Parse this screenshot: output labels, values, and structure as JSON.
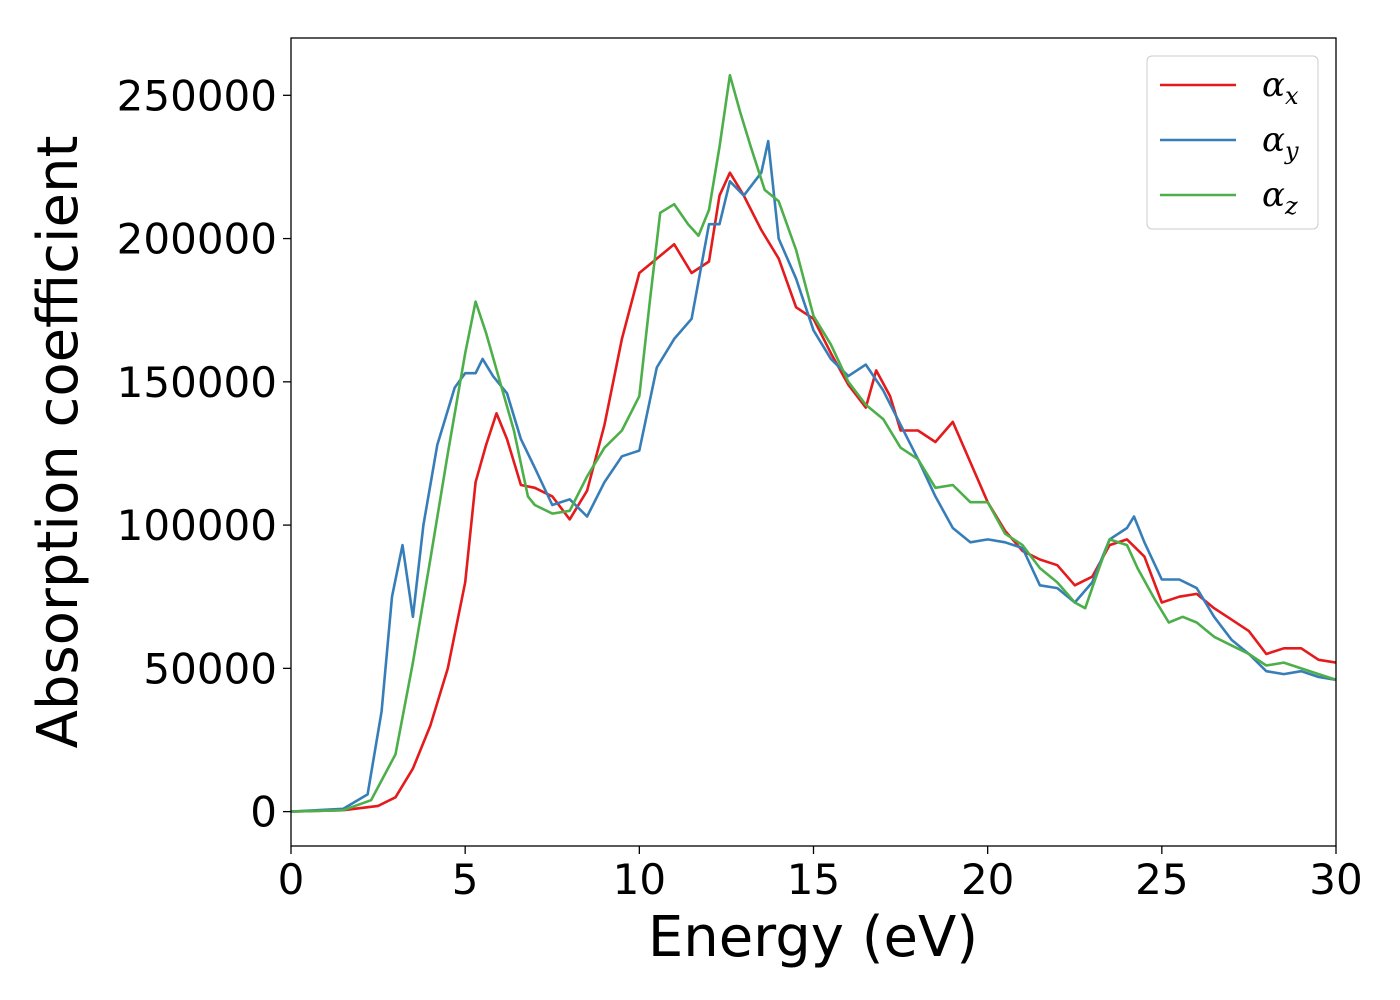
{
  "chart_data": {
    "type": "line",
    "xlabel": "Energy (eV)",
    "ylabel": "Absorption coefficient",
    "xlim": [
      0,
      30
    ],
    "ylim": [
      -12000,
      270000
    ],
    "xticks": [
      0,
      5,
      10,
      15,
      20,
      25,
      30
    ],
    "xtick_labels": [
      "0",
      "5",
      "10",
      "15",
      "20",
      "25",
      "30"
    ],
    "yticks": [
      0,
      50000,
      100000,
      150000,
      200000,
      250000
    ],
    "ytick_labels": [
      "0",
      "50000",
      "100000",
      "150000",
      "200000",
      "250000"
    ],
    "grid": false,
    "legend_position": "top-right",
    "series": [
      {
        "name": "α_x",
        "legend_base": "α",
        "legend_sub": "x",
        "color": "#e41a1c",
        "points": [
          [
            0,
            0
          ],
          [
            1.5,
            500
          ],
          [
            2.5,
            2000
          ],
          [
            3.0,
            5000
          ],
          [
            3.5,
            15000
          ],
          [
            4.0,
            30000
          ],
          [
            4.5,
            50000
          ],
          [
            5.0,
            80000
          ],
          [
            5.3,
            115000
          ],
          [
            5.6,
            128000
          ],
          [
            5.9,
            139000
          ],
          [
            6.2,
            130000
          ],
          [
            6.6,
            114000
          ],
          [
            7.0,
            113000
          ],
          [
            7.5,
            110000
          ],
          [
            8.0,
            102000
          ],
          [
            8.5,
            112000
          ],
          [
            9.0,
            135000
          ],
          [
            9.5,
            165000
          ],
          [
            10.0,
            188000
          ],
          [
            10.5,
            193000
          ],
          [
            11.0,
            198000
          ],
          [
            11.5,
            188000
          ],
          [
            12.0,
            192000
          ],
          [
            12.3,
            215000
          ],
          [
            12.6,
            223000
          ],
          [
            13.0,
            215000
          ],
          [
            13.5,
            203000
          ],
          [
            14.0,
            193000
          ],
          [
            14.5,
            176000
          ],
          [
            15.0,
            172000
          ],
          [
            15.5,
            160000
          ],
          [
            16.0,
            149000
          ],
          [
            16.5,
            141000
          ],
          [
            16.8,
            154000
          ],
          [
            17.2,
            145000
          ],
          [
            17.5,
            133000
          ],
          [
            18.0,
            133000
          ],
          [
            18.5,
            129000
          ],
          [
            19.0,
            136000
          ],
          [
            19.5,
            122000
          ],
          [
            20.0,
            108000
          ],
          [
            20.5,
            98000
          ],
          [
            21.0,
            91000
          ],
          [
            21.5,
            88000
          ],
          [
            22.0,
            86000
          ],
          [
            22.5,
            79000
          ],
          [
            23.0,
            82000
          ],
          [
            23.5,
            93000
          ],
          [
            24.0,
            95000
          ],
          [
            24.5,
            89000
          ],
          [
            25.0,
            73000
          ],
          [
            25.5,
            75000
          ],
          [
            26.0,
            76000
          ],
          [
            26.5,
            71000
          ],
          [
            27.0,
            67000
          ],
          [
            27.5,
            63000
          ],
          [
            28.0,
            55000
          ],
          [
            28.5,
            57000
          ],
          [
            29.0,
            57000
          ],
          [
            29.5,
            53000
          ],
          [
            30.0,
            52000
          ]
        ]
      },
      {
        "name": "α_y",
        "legend_base": "α",
        "legend_sub": "y",
        "color": "#377eb8",
        "points": [
          [
            0,
            0
          ],
          [
            1.5,
            1000
          ],
          [
            2.2,
            6000
          ],
          [
            2.6,
            35000
          ],
          [
            2.9,
            75000
          ],
          [
            3.2,
            93000
          ],
          [
            3.5,
            68000
          ],
          [
            3.8,
            100000
          ],
          [
            4.2,
            128000
          ],
          [
            4.7,
            148000
          ],
          [
            5.0,
            153000
          ],
          [
            5.3,
            153000
          ],
          [
            5.5,
            158000
          ],
          [
            5.8,
            152000
          ],
          [
            6.2,
            146000
          ],
          [
            6.6,
            130000
          ],
          [
            7.0,
            120000
          ],
          [
            7.5,
            107000
          ],
          [
            8.0,
            109000
          ],
          [
            8.5,
            103000
          ],
          [
            9.0,
            115000
          ],
          [
            9.5,
            124000
          ],
          [
            10.0,
            126000
          ],
          [
            10.5,
            155000
          ],
          [
            11.0,
            165000
          ],
          [
            11.5,
            172000
          ],
          [
            12.0,
            205000
          ],
          [
            12.3,
            205000
          ],
          [
            12.6,
            220000
          ],
          [
            13.0,
            215000
          ],
          [
            13.5,
            223000
          ],
          [
            13.7,
            234000
          ],
          [
            14.0,
            200000
          ],
          [
            14.5,
            186000
          ],
          [
            15.0,
            168000
          ],
          [
            15.5,
            158000
          ],
          [
            16.0,
            152000
          ],
          [
            16.5,
            156000
          ],
          [
            17.0,
            147000
          ],
          [
            17.5,
            135000
          ],
          [
            18.0,
            123000
          ],
          [
            18.5,
            110000
          ],
          [
            19.0,
            99000
          ],
          [
            19.5,
            94000
          ],
          [
            20.0,
            95000
          ],
          [
            20.5,
            94000
          ],
          [
            21.0,
            92000
          ],
          [
            21.5,
            79000
          ],
          [
            22.0,
            78000
          ],
          [
            22.5,
            73000
          ],
          [
            23.0,
            80000
          ],
          [
            23.5,
            95000
          ],
          [
            24.0,
            99000
          ],
          [
            24.2,
            103000
          ],
          [
            24.5,
            94000
          ],
          [
            25.0,
            81000
          ],
          [
            25.5,
            81000
          ],
          [
            26.0,
            78000
          ],
          [
            26.5,
            68000
          ],
          [
            27.0,
            60000
          ],
          [
            27.5,
            55000
          ],
          [
            28.0,
            49000
          ],
          [
            28.5,
            48000
          ],
          [
            29.0,
            49000
          ],
          [
            29.5,
            47000
          ],
          [
            30.0,
            46000
          ]
        ]
      },
      {
        "name": "α_z",
        "legend_base": "α",
        "legend_sub": "z",
        "color": "#4daf4a",
        "points": [
          [
            0,
            0
          ],
          [
            1.5,
            500
          ],
          [
            2.3,
            4000
          ],
          [
            3.0,
            20000
          ],
          [
            3.5,
            52000
          ],
          [
            4.0,
            88000
          ],
          [
            4.5,
            125000
          ],
          [
            5.0,
            160000
          ],
          [
            5.3,
            178000
          ],
          [
            5.6,
            167000
          ],
          [
            6.0,
            150000
          ],
          [
            6.4,
            133000
          ],
          [
            6.8,
            110000
          ],
          [
            7.0,
            107000
          ],
          [
            7.5,
            104000
          ],
          [
            8.0,
            105000
          ],
          [
            8.5,
            117000
          ],
          [
            9.0,
            127000
          ],
          [
            9.5,
            133000
          ],
          [
            10.0,
            145000
          ],
          [
            10.3,
            178000
          ],
          [
            10.6,
            209000
          ],
          [
            11.0,
            212000
          ],
          [
            11.4,
            205000
          ],
          [
            11.7,
            201000
          ],
          [
            12.0,
            210000
          ],
          [
            12.3,
            232000
          ],
          [
            12.6,
            257000
          ],
          [
            12.9,
            244000
          ],
          [
            13.2,
            232000
          ],
          [
            13.6,
            217000
          ],
          [
            14.0,
            213000
          ],
          [
            14.5,
            196000
          ],
          [
            15.0,
            173000
          ],
          [
            15.5,
            163000
          ],
          [
            16.0,
            150000
          ],
          [
            16.5,
            142000
          ],
          [
            17.0,
            137000
          ],
          [
            17.5,
            127000
          ],
          [
            18.0,
            123000
          ],
          [
            18.5,
            113000
          ],
          [
            19.0,
            114000
          ],
          [
            19.5,
            108000
          ],
          [
            20.0,
            108000
          ],
          [
            20.5,
            97000
          ],
          [
            21.0,
            93000
          ],
          [
            21.5,
            85000
          ],
          [
            22.0,
            80000
          ],
          [
            22.5,
            73000
          ],
          [
            22.8,
            71000
          ],
          [
            23.2,
            85000
          ],
          [
            23.5,
            95000
          ],
          [
            24.0,
            93000
          ],
          [
            24.3,
            85000
          ],
          [
            24.8,
            74000
          ],
          [
            25.2,
            66000
          ],
          [
            25.6,
            68000
          ],
          [
            26.0,
            66000
          ],
          [
            26.5,
            61000
          ],
          [
            27.0,
            58000
          ],
          [
            27.5,
            55000
          ],
          [
            28.0,
            51000
          ],
          [
            28.5,
            52000
          ],
          [
            29.0,
            50000
          ],
          [
            29.5,
            48000
          ],
          [
            30.0,
            46000
          ]
        ]
      }
    ]
  }
}
